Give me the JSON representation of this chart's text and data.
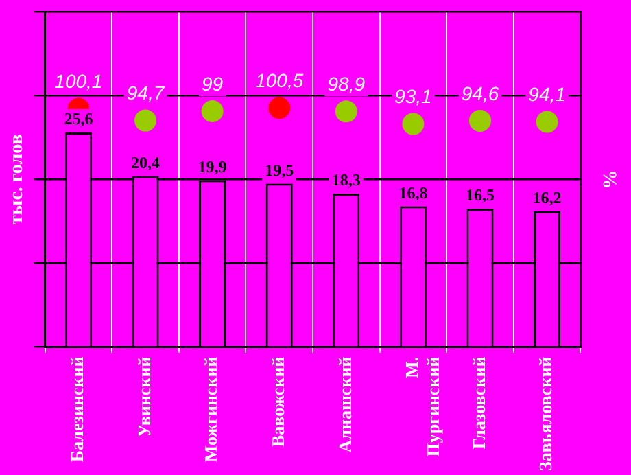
{
  "chart_data": {
    "type": "bar",
    "ylabel": "тыс. голов",
    "y2label": "%",
    "categories": [
      "Балезинский",
      "Увинский",
      "Можгинский",
      "Вавожский",
      "Алнашский",
      "М. Пургинский",
      "Глазовский",
      "Завьяловский"
    ],
    "ylim": [
      0,
      40
    ],
    "y2lim": [
      -10,
      145
    ],
    "tick_labels": "x",
    "grid": true,
    "marker": "circle",
    "series": [
      {
        "color": "#ff00ff",
        "values": [
          25.6,
          20.4,
          19.9,
          19.5,
          18.3,
          16.8,
          16.5,
          16.2
        ],
        "value_labels": [
          "25,6",
          "20,4",
          "19,9",
          "19,5",
          "18,3",
          "16,8",
          "16,5",
          "16,2"
        ]
      },
      {
        "type": "scatter",
        "axis": "y2",
        "colors": [
          "#ff0000",
          "#99cc00",
          "#99cc00",
          "#ff0000",
          "#99cc00",
          "#99cc00",
          "#99cc00",
          "#99cc00"
        ],
        "values": [
          100.1,
          94.7,
          99,
          100.5,
          98.9,
          93.1,
          94.6,
          94.1
        ],
        "value_labels": [
          "100,1",
          "94,7",
          "99",
          "100,5",
          "98,9",
          "93,1",
          "94,6",
          "94,1"
        ]
      }
    ]
  }
}
